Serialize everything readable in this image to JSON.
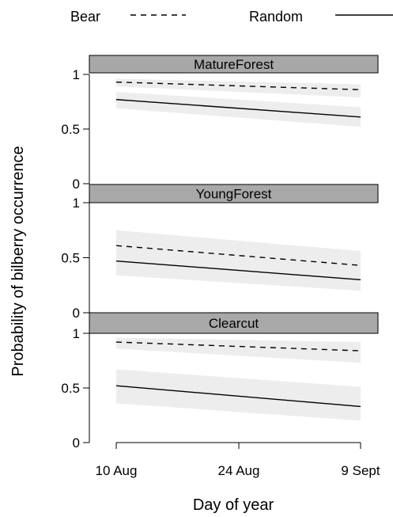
{
  "chart_data": {
    "type": "line",
    "xlabel": "Day of year",
    "ylabel": "Probability of bilberry occurrence",
    "x_tick_labels": [
      "10 Aug",
      "24 Aug",
      "9 Sept"
    ],
    "y_tick_labels": [
      "0",
      "0.5",
      "1"
    ],
    "ylim": [
      0,
      1
    ],
    "grid": false,
    "legend_position": "top",
    "legend": [
      {
        "name": "Bear",
        "style": "dashed"
      },
      {
        "name": "Random",
        "style": "solid"
      }
    ],
    "panels": [
      {
        "name": "MatureForest",
        "series": [
          {
            "name": "Bear",
            "start": 0.93,
            "end": 0.86,
            "ci_start": [
              0.89,
              0.96
            ],
            "ci_end": [
              0.79,
              0.91
            ]
          },
          {
            "name": "Random",
            "start": 0.77,
            "end": 0.61,
            "ci_start": [
              0.69,
              0.84
            ],
            "ci_end": [
              0.52,
              0.7
            ]
          }
        ]
      },
      {
        "name": "YoungForest",
        "series": [
          {
            "name": "Bear",
            "start": 0.61,
            "end": 0.43,
            "ci_start": [
              0.47,
              0.75
            ],
            "ci_end": [
              0.31,
              0.56
            ]
          },
          {
            "name": "Random",
            "start": 0.47,
            "end": 0.3,
            "ci_start": [
              0.34,
              0.6
            ],
            "ci_end": [
              0.2,
              0.43
            ]
          }
        ]
      },
      {
        "name": "Clearcut",
        "series": [
          {
            "name": "Bear",
            "start": 0.92,
            "end": 0.84,
            "ci_start": [
              0.86,
              0.96
            ],
            "ci_end": [
              0.73,
              0.92
            ]
          },
          {
            "name": "Random",
            "start": 0.52,
            "end": 0.33,
            "ci_start": [
              0.36,
              0.67
            ],
            "ci_end": [
              0.2,
              0.51
            ]
          }
        ]
      }
    ],
    "colors": {
      "strip": "#a8a8a8",
      "band": "#ededed",
      "line": "#000000"
    }
  }
}
